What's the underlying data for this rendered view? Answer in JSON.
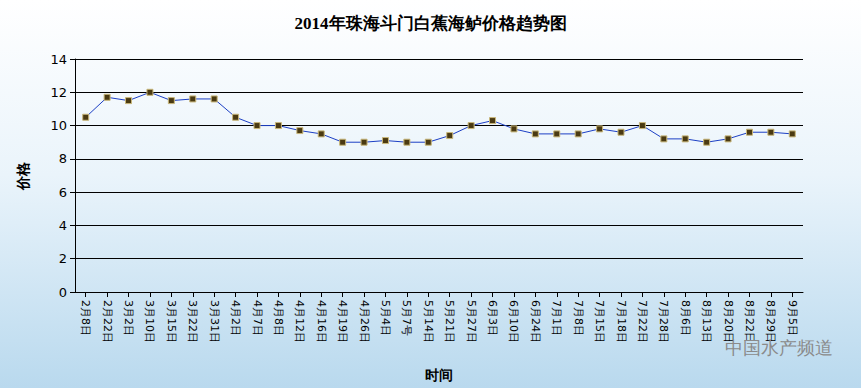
{
  "chart_data": {
    "type": "line",
    "title": "2014年珠海斗门白蕉海鲈价格趋势图",
    "x_label": "时间",
    "y_label": "价格",
    "annotations": [
      "中国水产频道"
    ],
    "categories": [
      "2月8日",
      "2月22日",
      "3月2日",
      "3月10日",
      "3月15日",
      "3月22日",
      "3月31日",
      "4月2日",
      "4月7日",
      "4月8日",
      "4月12日",
      "4月16日",
      "4月19日",
      "4月26日",
      "5月4日",
      "5月7号",
      "5月14日",
      "5月21日",
      "5月27日",
      "6月3日",
      "6月10日",
      "6月24日",
      "7月1日",
      "7月8日",
      "7月15日",
      "7月18日",
      "7月22日",
      "7月28日",
      "8月6日",
      "8月13日",
      "8月20日",
      "8月22日",
      "8月29日",
      "9月5日"
    ],
    "values": [
      10.5,
      11.7,
      11.5,
      12.0,
      11.5,
      11.6,
      11.6,
      10.5,
      10.0,
      10.0,
      9.7,
      9.5,
      9.0,
      9.0,
      9.1,
      9.0,
      9.0,
      9.4,
      10.0,
      10.3,
      9.8,
      9.5,
      9.5,
      9.5,
      9.8,
      9.6,
      10.0,
      9.2,
      9.2,
      9.0,
      9.2,
      9.6,
      9.6,
      9.5
    ],
    "color": "#1c3fc4",
    "marker": "square",
    "ylim": [
      0,
      14
    ],
    "yticks": [
      0,
      2,
      4,
      6,
      8,
      10,
      12,
      14
    ],
    "grid": true
  }
}
